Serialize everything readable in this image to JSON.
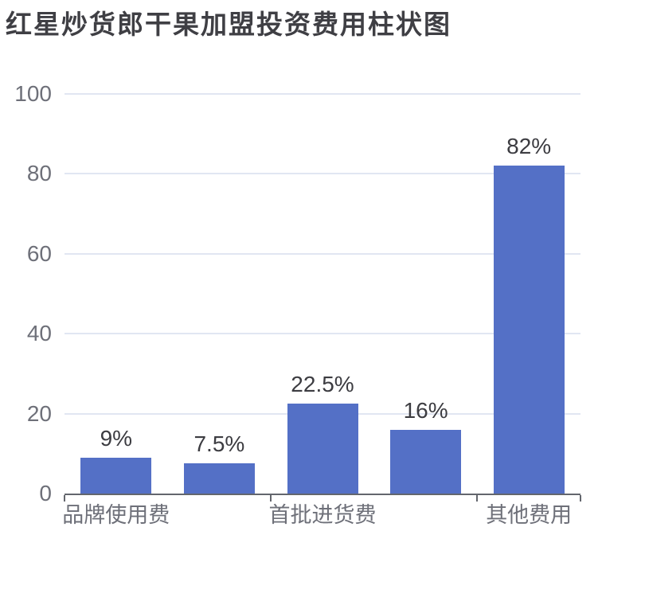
{
  "title": {
    "text": "红星炒货郎干果加盟投资费用柱状图"
  },
  "chart_data": {
    "type": "bar",
    "title": "红星炒货郎干果加盟投资费用柱状图",
    "categories": [
      "品牌使用费",
      "",
      "首批进货费",
      "",
      "其他费用"
    ],
    "values": [
      9,
      7.5,
      22.5,
      16,
      82
    ],
    "value_labels": [
      "9%",
      "7.5%",
      "22.5%",
      "16%",
      "82%"
    ],
    "xlabel": "",
    "ylabel": "",
    "ylim": [
      0,
      100
    ],
    "yticks": [
      0,
      20,
      40,
      60,
      80,
      100
    ],
    "grid": true,
    "legend": "none",
    "x_tick_boundary_indices": [
      0,
      2,
      4,
      5
    ],
    "colors": {
      "bar": "#5470C6",
      "gridline": "#E1E6F2",
      "axis_line": "#63666D",
      "axis_label": "#6E7079",
      "value_label": "#3C3C41",
      "title": "#3F3F44",
      "background": "#FFFFFF"
    }
  }
}
